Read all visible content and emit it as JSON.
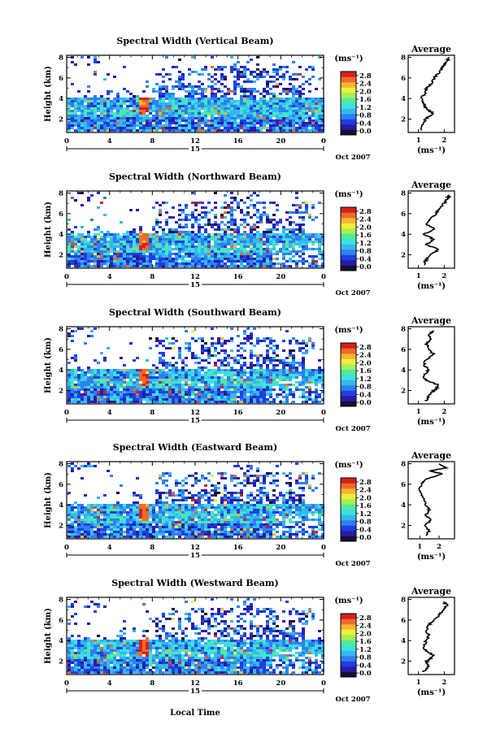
{
  "colorbar": {
    "unit_label": "(ms⁻¹)",
    "ticks": [
      "0.0",
      "0.4",
      "0.8",
      "1.2",
      "1.6",
      "2.0",
      "2.4",
      "2.8"
    ],
    "colors": [
      "#111133",
      "#2b1aa8",
      "#1f3fe0",
      "#2f7ff0",
      "#33b8f0",
      "#3ee0e0",
      "#52ea9b",
      "#a8ee55",
      "#f0ee3a",
      "#f6b633",
      "#f06a2a",
      "#d81f1f"
    ]
  },
  "date_label": "Oct 2007",
  "day_label": "15",
  "xlabel": "Local Time",
  "ylabel": "Height (km)",
  "average_title": "Average",
  "average_xlabel": "(ms⁻¹)",
  "chart_data": [
    {
      "type": "heatmap",
      "title": "Spectral Width (Vertical Beam)",
      "x_ticks": [
        "0",
        "4",
        "8",
        "12",
        "16",
        "20",
        "0"
      ],
      "y_ticks": [
        "2",
        "4",
        "6",
        "8"
      ],
      "xlim": [
        0,
        24
      ],
      "ylim": [
        0.7,
        8.2
      ],
      "average_profile": {
        "x_ticks": [
          "1",
          "2"
        ],
        "xlim": [
          0.6,
          2.4
        ],
        "height": [
          0.9,
          1.5,
          2.0,
          2.5,
          3.0,
          3.5,
          4.0,
          4.5,
          5.0,
          5.5,
          6.0,
          6.5,
          7.0,
          7.3,
          7.6,
          8.0
        ],
        "width": [
          1.1,
          1.2,
          1.25,
          1.6,
          1.3,
          1.2,
          1.1,
          1.3,
          1.3,
          1.5,
          1.6,
          1.8,
          1.9,
          2.0,
          2.1,
          2.2
        ]
      }
    },
    {
      "type": "heatmap",
      "title": "Spectral Width (Northward Beam)",
      "x_ticks": [
        "0",
        "4",
        "8",
        "12",
        "16",
        "20",
        "0"
      ],
      "y_ticks": [
        "2",
        "4",
        "6",
        "8"
      ],
      "xlim": [
        0,
        24
      ],
      "ylim": [
        0.7,
        8.2
      ],
      "average_profile": {
        "x_ticks": [
          "1",
          "2"
        ],
        "xlim": [
          0.6,
          2.4
        ],
        "height": [
          1.0,
          1.5,
          2.0,
          2.5,
          3.0,
          3.5,
          4.0,
          4.5,
          5.0,
          5.5,
          6.0,
          6.5,
          7.0,
          7.4,
          7.8
        ],
        "width": [
          1.2,
          1.3,
          1.4,
          1.8,
          1.3,
          1.6,
          1.2,
          1.6,
          1.3,
          1.5,
          1.7,
          1.8,
          2.0,
          2.1,
          2.2
        ]
      }
    },
    {
      "type": "heatmap",
      "title": "Spectral Width (Southward Beam)",
      "x_ticks": [
        "0",
        "4",
        "8",
        "12",
        "16",
        "20",
        "0"
      ],
      "y_ticks": [
        "2",
        "4",
        "6",
        "8"
      ],
      "xlim": [
        0,
        24
      ],
      "ylim": [
        0.7,
        8.2
      ],
      "average_profile": {
        "x_ticks": [
          "1",
          "2"
        ],
        "xlim": [
          0.6,
          2.4
        ],
        "height": [
          1.0,
          1.5,
          2.0,
          2.5,
          3.0,
          3.5,
          4.0,
          4.5,
          5.0,
          5.5,
          6.0,
          6.5,
          7.0,
          7.5,
          7.8
        ],
        "width": [
          1.3,
          1.4,
          1.6,
          1.8,
          1.3,
          1.2,
          1.4,
          1.2,
          1.3,
          1.6,
          1.4,
          1.3,
          1.5,
          1.4,
          1.6
        ]
      }
    },
    {
      "type": "heatmap",
      "title": "Spectral Width (Eastward Beam)",
      "x_ticks": [
        "0",
        "4",
        "8",
        "12",
        "16",
        "20",
        "0"
      ],
      "y_ticks": [
        "2",
        "4",
        "6",
        "8"
      ],
      "xlim": [
        0,
        24
      ],
      "ylim": [
        0.7,
        8.2
      ],
      "average_profile": {
        "x_ticks": [
          "1",
          "2"
        ],
        "xlim": [
          0.4,
          2.8
        ],
        "height": [
          1.0,
          1.5,
          2.0,
          2.5,
          3.0,
          3.5,
          4.0,
          4.5,
          5.0,
          5.5,
          6.0,
          6.5,
          7.0,
          7.3,
          7.6,
          8.0
        ],
        "width": [
          1.3,
          1.5,
          1.2,
          1.6,
          1.3,
          1.5,
          1.3,
          1.2,
          1.1,
          1.0,
          1.1,
          1.3,
          2.2,
          1.5,
          2.4,
          2.0
        ]
      }
    },
    {
      "type": "heatmap",
      "title": "Spectral Width (Westward Beam)",
      "x_ticks": [
        "0",
        "4",
        "8",
        "12",
        "16",
        "20",
        "0"
      ],
      "y_ticks": [
        "2",
        "4",
        "6",
        "8"
      ],
      "xlim": [
        0,
        24
      ],
      "ylim": [
        0.7,
        8.2
      ],
      "average_profile": {
        "x_ticks": [
          "1",
          "2"
        ],
        "xlim": [
          0.6,
          2.4
        ],
        "height": [
          1.0,
          1.5,
          2.0,
          2.5,
          3.0,
          3.5,
          4.0,
          4.5,
          5.0,
          5.5,
          6.0,
          6.5,
          7.0,
          7.4,
          7.8
        ],
        "width": [
          1.2,
          1.4,
          1.3,
          1.6,
          1.3,
          1.2,
          1.3,
          1.4,
          1.3,
          1.4,
          1.6,
          1.8,
          2.0,
          2.1,
          2.0
        ]
      }
    }
  ]
}
